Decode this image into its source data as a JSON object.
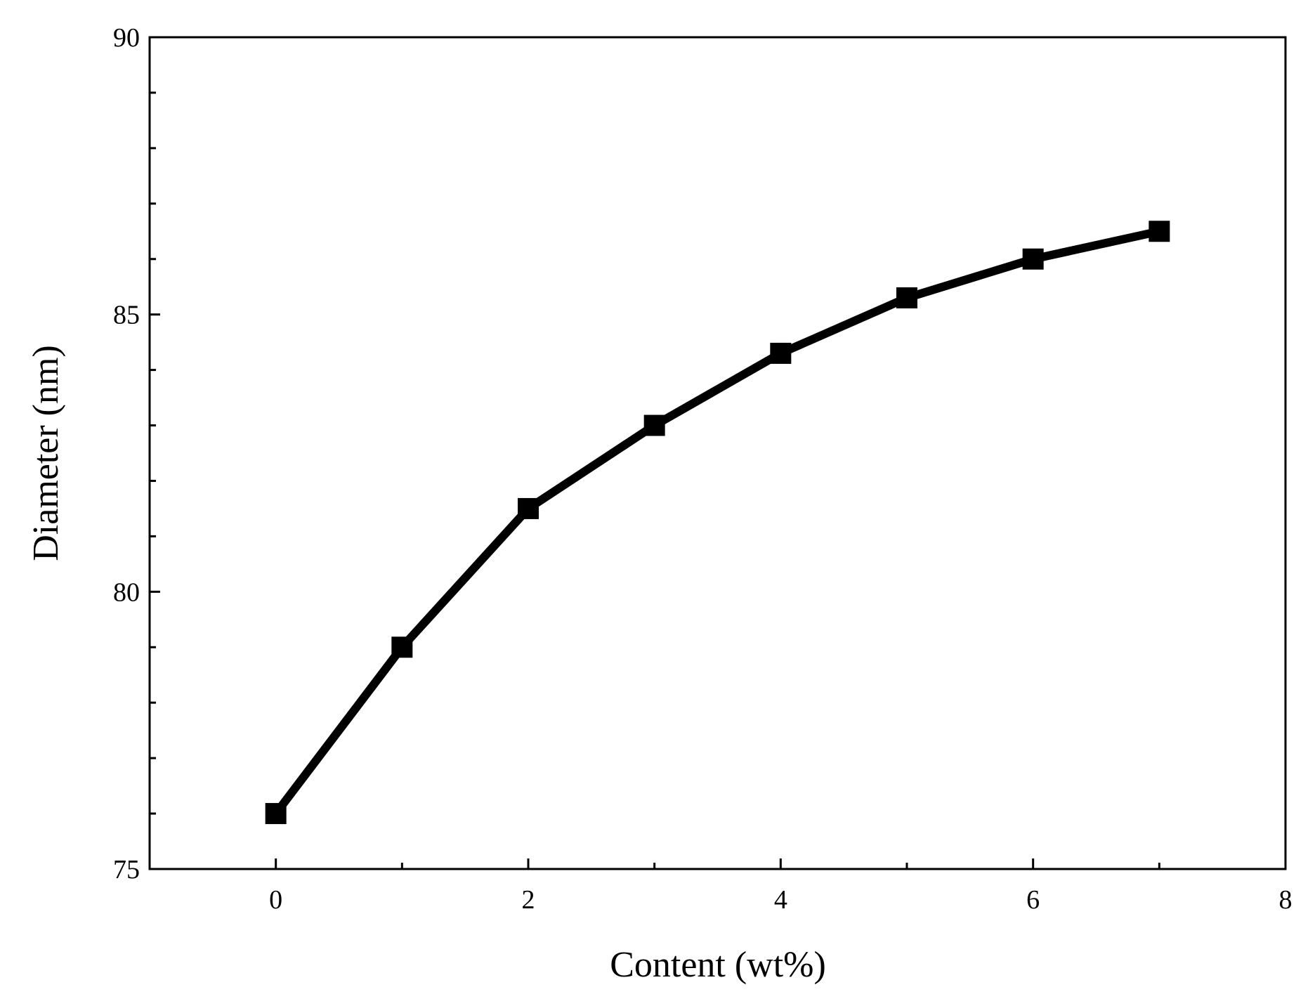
{
  "chart_data": {
    "type": "line",
    "xlabel": "Content (wt%)",
    "ylabel": "Diameter (nm)",
    "x": [
      0,
      1,
      2,
      3,
      4,
      5,
      6,
      7
    ],
    "series": [
      {
        "name": "Diameter",
        "color": "#000000",
        "values": [
          76.0,
          79.0,
          81.5,
          83.0,
          84.3,
          85.3,
          86.0,
          86.5
        ]
      }
    ],
    "xlim": [
      -1,
      8
    ],
    "ylim": [
      75,
      90
    ],
    "xticks": [
      0,
      2,
      4,
      6,
      8
    ],
    "yticks": [
      75,
      80,
      85,
      90
    ],
    "xminorticks": [
      1,
      3,
      5,
      7
    ],
    "yminorticks": [
      76,
      77,
      78,
      79,
      81,
      82,
      83,
      84,
      86,
      87,
      88,
      89
    ],
    "marker": "square",
    "legend": false,
    "grid": false
  }
}
